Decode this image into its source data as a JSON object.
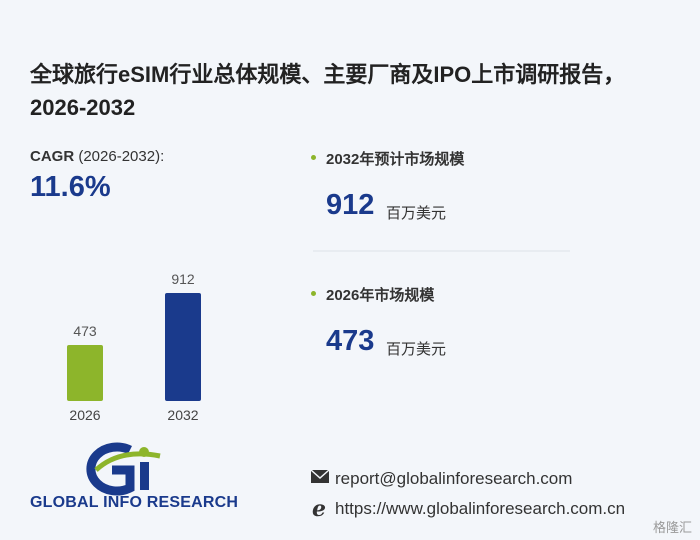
{
  "title": "全球旅行eSIM行业总体规模、主要厂商及IPO上市调研报告，2026-2032",
  "cagr": {
    "label": "CAGR",
    "period": "(2026-2032):",
    "value": "11.6%"
  },
  "stats": [
    {
      "label": "2032年预计市场规模",
      "value": 912,
      "unit": "百万美元"
    },
    {
      "label": "2026年市场规模",
      "value": 473,
      "unit": "百万美元"
    }
  ],
  "chart_data": {
    "type": "bar",
    "categories": [
      "2026",
      "2032"
    ],
    "values": [
      473,
      912
    ],
    "colors": [
      "#8db52b",
      "#1a3a8c"
    ]
  },
  "logo": {
    "text": "GLOBAL INFO RESEARCH"
  },
  "contact": {
    "email": "report@globalinforesearch.com",
    "website": "https://www.globalinforesearch.com.cn"
  },
  "watermark": "格隆汇"
}
